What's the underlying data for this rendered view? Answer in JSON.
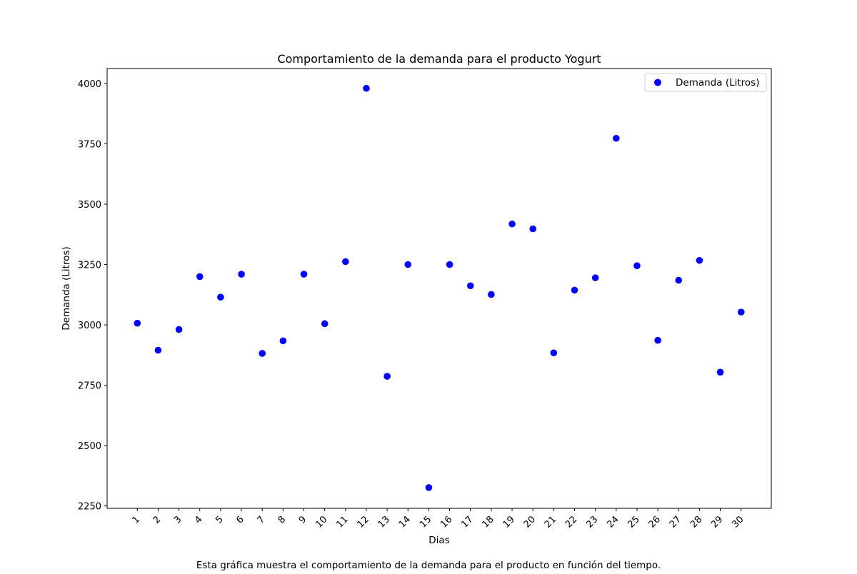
{
  "chart_data": {
    "type": "scatter",
    "title": "Comportamiento de la demanda para el producto Yogurt",
    "xlabel": "Dias",
    "ylabel": "Demanda (Litros)",
    "caption": "Esta gráfica muestra el comportamiento de la demanda para el producto en función del tiempo.",
    "x": [
      1,
      2,
      3,
      4,
      5,
      6,
      7,
      8,
      9,
      10,
      11,
      12,
      13,
      14,
      15,
      16,
      17,
      18,
      19,
      20,
      21,
      22,
      23,
      24,
      25,
      26,
      27,
      28,
      29,
      30
    ],
    "x_tick_labels": [
      "1",
      "2",
      "3",
      "4",
      "5",
      "6",
      "7",
      "8",
      "9",
      "10",
      "11",
      "12",
      "13",
      "14",
      "15",
      "16",
      "17",
      "18",
      "19",
      "20",
      "21",
      "22",
      "23",
      "24",
      "25",
      "26",
      "27",
      "28",
      "29",
      "30"
    ],
    "series": [
      {
        "name": "Demanda (Litros)",
        "color": "#0000ff",
        "values": [
          3007,
          2895,
          2981,
          3200,
          3115,
          3210,
          2882,
          2934,
          3210,
          3005,
          3262,
          3980,
          2787,
          3250,
          2326,
          3250,
          3162,
          3126,
          3418,
          3398,
          2884,
          3144,
          3195,
          3773,
          3245,
          2936,
          3185,
          3267,
          2804,
          3053
        ]
      }
    ],
    "xlim": [
      -0.45,
      31.45
    ],
    "ylim": [
      2240,
      4062
    ],
    "y_ticks": [
      2250,
      2500,
      2750,
      3000,
      3250,
      3500,
      3750,
      4000
    ],
    "grid": false,
    "legend_position": "top-right"
  }
}
